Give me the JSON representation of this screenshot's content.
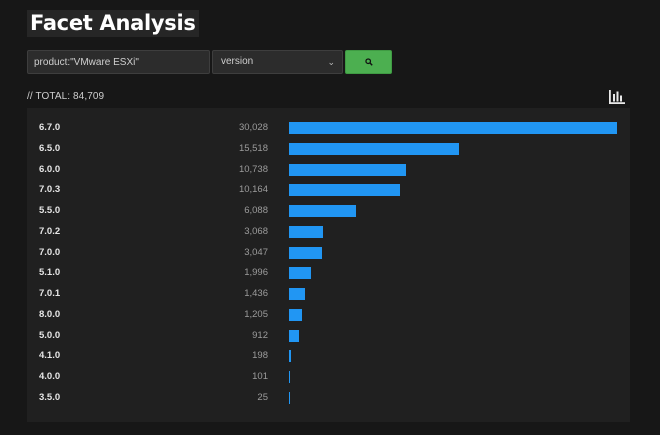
{
  "header": {
    "title": "Facet Analysis"
  },
  "search": {
    "query_value": "product:\"VMware ESXi\"",
    "facet_selected": "version",
    "button_icon": "search-icon",
    "button_color": "#4caf50"
  },
  "summary": {
    "total_label": "// TOTAL: 84,709"
  },
  "toolbar": {
    "chart_icon": "bar-chart-icon"
  },
  "facet_results": {
    "bar_color": "#2196f3",
    "rows": [
      {
        "version": "6.7.0",
        "count_label": "30,028",
        "count": 30028
      },
      {
        "version": "6.5.0",
        "count_label": "15,518",
        "count": 15518
      },
      {
        "version": "6.0.0",
        "count_label": "10,738",
        "count": 10738
      },
      {
        "version": "7.0.3",
        "count_label": "10,164",
        "count": 10164
      },
      {
        "version": "5.5.0",
        "count_label": "6,088",
        "count": 6088
      },
      {
        "version": "7.0.2",
        "count_label": "3,068",
        "count": 3068
      },
      {
        "version": "7.0.0",
        "count_label": "3,047",
        "count": 3047
      },
      {
        "version": "5.1.0",
        "count_label": "1,996",
        "count": 1996
      },
      {
        "version": "7.0.1",
        "count_label": "1,436",
        "count": 1436
      },
      {
        "version": "8.0.0",
        "count_label": "1,205",
        "count": 1205
      },
      {
        "version": "5.0.0",
        "count_label": "912",
        "count": 912
      },
      {
        "version": "4.1.0",
        "count_label": "198",
        "count": 198
      },
      {
        "version": "4.0.0",
        "count_label": "101",
        "count": 101
      },
      {
        "version": "3.5.0",
        "count_label": "25",
        "count": 25
      }
    ]
  }
}
